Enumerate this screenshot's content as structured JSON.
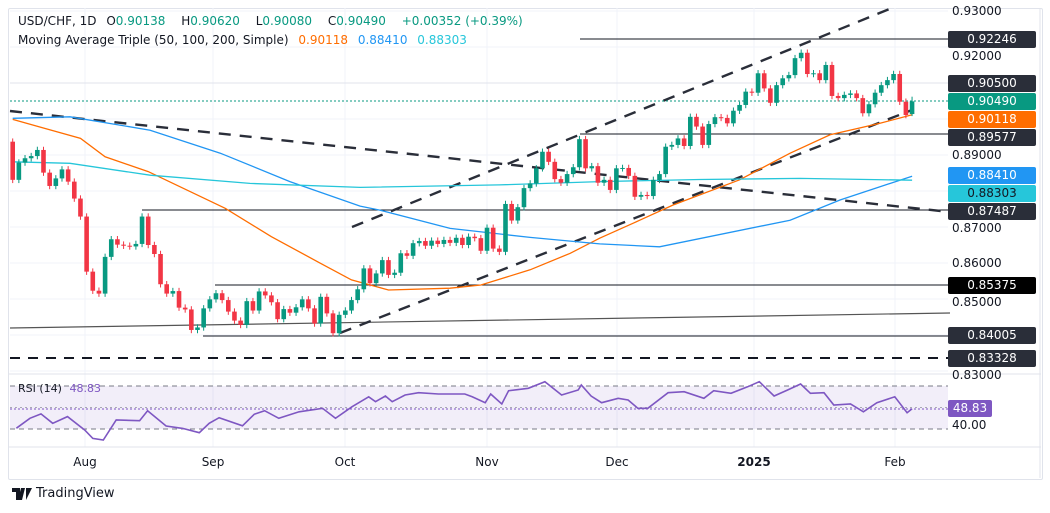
{
  "header": {
    "symbol": "USD/CHF, 1D",
    "open_label": "O",
    "open": "0.90138",
    "high_label": "H",
    "high": "0.90620",
    "low_label": "L",
    "low": "0.90080",
    "close_label": "C",
    "close": "0.90490",
    "change": "+0.00352 (+0.39%)",
    "indicator": "Moving Average Triple (50, 100, 200, Simple)",
    "ma50": "0.90118",
    "ma100": "0.88410",
    "ma200": "0.88303"
  },
  "rsi_header": {
    "label": "RSI (14)",
    "value": "48.83"
  },
  "badges": {
    "r1": "0.92246",
    "r2": "0.90500",
    "price": "0.90490",
    "ma50": "0.90118",
    "s1": "0.89577",
    "ma100": "0.88410",
    "ma200": "0.88303",
    "s2": "0.87487",
    "s3": "0.85375",
    "s4": "0.84005",
    "s5": "0.83328",
    "rsi": "48.83"
  },
  "axis": {
    "ticks": [
      "0.93000",
      "0.92000",
      "0.89000",
      "0.87000",
      "0.86000",
      "0.85000",
      "0.83000"
    ],
    "rsi_tick": "40.00",
    "months": [
      "Aug",
      "Sep",
      "Oct",
      "Nov",
      "Dec",
      "2025",
      "Feb"
    ]
  },
  "brand": "TradingView",
  "colors": {
    "up": "#089981",
    "down": "#f23645",
    "ma50": "#ff6d00",
    "ma100": "#2196f3",
    "ma200": "#26c6da",
    "rsi": "#7e57c2"
  },
  "chart_data": {
    "type": "candlestick",
    "symbol": "USD/CHF",
    "timeframe": "1D",
    "ylim": [
      0.83,
      0.93
    ],
    "first_open": 0.8937,
    "last_bar": {
      "open": 0.90138,
      "high": 0.9062,
      "low": 0.9008,
      "close": 0.9049
    },
    "closes": [
      0.8831,
      0.8879,
      0.8891,
      0.8897,
      0.8914,
      0.8851,
      0.8814,
      0.8835,
      0.886,
      0.8826,
      0.8779,
      0.8729,
      0.8576,
      0.8523,
      0.8515,
      0.8617,
      0.8666,
      0.8651,
      0.8648,
      0.8646,
      0.8653,
      0.8729,
      0.865,
      0.8625,
      0.8541,
      0.8515,
      0.8522,
      0.8476,
      0.8471,
      0.8414,
      0.8421,
      0.8474,
      0.8499,
      0.8516,
      0.8497,
      0.8465,
      0.844,
      0.8428,
      0.8494,
      0.8468,
      0.8521,
      0.851,
      0.8491,
      0.8444,
      0.8472,
      0.8462,
      0.8477,
      0.8499,
      0.8474,
      0.8432,
      0.8506,
      0.846,
      0.8405,
      0.8456,
      0.8468,
      0.8497,
      0.8527,
      0.8585,
      0.8544,
      0.8571,
      0.8608,
      0.8567,
      0.8573,
      0.8627,
      0.862,
      0.8655,
      0.8661,
      0.8648,
      0.8662,
      0.8653,
      0.8664,
      0.8656,
      0.867,
      0.865,
      0.8673,
      0.8669,
      0.8634,
      0.8698,
      0.864,
      0.8631,
      0.8764,
      0.8718,
      0.8755,
      0.8808,
      0.8821,
      0.8863,
      0.8909,
      0.8881,
      0.8833,
      0.8823,
      0.8847,
      0.8866,
      0.8944,
      0.8863,
      0.8869,
      0.8823,
      0.8831,
      0.8803,
      0.8863,
      0.8864,
      0.8842,
      0.8784,
      0.8789,
      0.8786,
      0.8831,
      0.8847,
      0.8923,
      0.8928,
      0.8946,
      0.8925,
      0.9006,
      0.8979,
      0.8928,
      0.8986,
      0.9005,
      0.9003,
      0.8988,
      0.9023,
      0.9039,
      0.9076,
      0.9073,
      0.9127,
      0.9085,
      0.9045,
      0.9094,
      0.9113,
      0.9122,
      0.9169,
      0.9184,
      0.9125,
      0.9127,
      0.9108,
      0.915,
      0.9064,
      0.9058,
      0.9067,
      0.9071,
      0.9058,
      0.9016,
      0.9041,
      0.9073,
      0.9094,
      0.9108,
      0.9125,
      0.9048,
      0.9011,
      0.9049
    ],
    "moving_averages": [
      {
        "name": "MA 50",
        "points": [
          [
            1,
            0.8999
          ],
          [
            12,
            0.8946
          ],
          [
            16,
            0.8895
          ],
          [
            23,
            0.8854
          ],
          [
            35.5,
            0.8752
          ],
          [
            43,
            0.8673
          ],
          [
            51,
            0.8599
          ],
          [
            56,
            0.8553
          ],
          [
            62,
            0.8525
          ],
          [
            72,
            0.853
          ],
          [
            77,
            0.8539
          ],
          [
            85,
            0.8581
          ],
          [
            91.5,
            0.8627
          ],
          [
            96.3,
            0.8669
          ],
          [
            102.8,
            0.8719
          ],
          [
            108.2,
            0.8761
          ],
          [
            119,
            0.8831
          ],
          [
            127.2,
            0.8905
          ],
          [
            133.7,
            0.8956
          ],
          [
            141.8,
            0.8988
          ],
          [
            147,
            0.9012
          ]
        ]
      },
      {
        "name": "MA 100",
        "points": [
          [
            1,
            0.9002
          ],
          [
            10.3,
            0.9006
          ],
          [
            23.3,
            0.8969
          ],
          [
            34.7,
            0.8905
          ],
          [
            46,
            0.8826
          ],
          [
            57.4,
            0.8758
          ],
          [
            60.6,
            0.8747
          ],
          [
            72,
            0.8696
          ],
          [
            85,
            0.8671
          ],
          [
            96.3,
            0.8653
          ],
          [
            106,
            0.8645
          ],
          [
            127.2,
            0.8719
          ],
          [
            135.3,
            0.8775
          ],
          [
            147,
            0.8841
          ]
        ]
      },
      {
        "name": "MA 200",
        "points": [
          [
            1,
            0.8881
          ],
          [
            10.3,
            0.8877
          ],
          [
            23.3,
            0.8844
          ],
          [
            39.5,
            0.8821
          ],
          [
            57.4,
            0.881
          ],
          [
            80,
            0.8817
          ],
          [
            96.3,
            0.8826
          ],
          [
            112.5,
            0.8832
          ],
          [
            128.8,
            0.8835
          ],
          [
            147,
            0.883
          ]
        ]
      }
    ],
    "rsi": {
      "period": 14,
      "bands": [
        70,
        50,
        30
      ],
      "points": [
        [
          1.6,
          30.7
        ],
        [
          3.8,
          40
        ],
        [
          5.6,
          44
        ],
        [
          7.5,
          35.3
        ],
        [
          9.9,
          41.5
        ],
        [
          12.7,
          29
        ],
        [
          14,
          21.3
        ],
        [
          15.7,
          19.8
        ],
        [
          17.8,
          38.4
        ],
        [
          21.6,
          37.7
        ],
        [
          22.9,
          47
        ],
        [
          25.9,
          32.8
        ],
        [
          28.6,
          30.6
        ],
        [
          31.3,
          26.6
        ],
        [
          32.9,
          35.3
        ],
        [
          34.5,
          40.5
        ],
        [
          38.3,
          33
        ],
        [
          40.2,
          43.7
        ],
        [
          41.9,
          47
        ],
        [
          44.2,
          40
        ],
        [
          47.5,
          46
        ],
        [
          51.3,
          49.3
        ],
        [
          53.4,
          40
        ],
        [
          56.1,
          50.7
        ],
        [
          58.8,
          60
        ],
        [
          59.9,
          55.4
        ],
        [
          61.5,
          60.7
        ],
        [
          62.6,
          55.4
        ],
        [
          64.7,
          61.6
        ],
        [
          66.9,
          63.8
        ],
        [
          70.1,
          62.6
        ],
        [
          74.4,
          62.6
        ],
        [
          75.6,
          60
        ],
        [
          77.7,
          54.5
        ],
        [
          78.6,
          62.6
        ],
        [
          80.4,
          53.3
        ],
        [
          81.5,
          65.6
        ],
        [
          84.7,
          67.9
        ],
        [
          87.4,
          74
        ],
        [
          90.1,
          61.6
        ],
        [
          92.8,
          66.3
        ],
        [
          93.3,
          70.9
        ],
        [
          94.9,
          60.7
        ],
        [
          96.6,
          54.5
        ],
        [
          99.3,
          58.6
        ],
        [
          100.9,
          57
        ],
        [
          102.5,
          49.3
        ],
        [
          104.1,
          49.3
        ],
        [
          107.4,
          63.8
        ],
        [
          110,
          64.7
        ],
        [
          113.2,
          58.6
        ],
        [
          114.8,
          65.6
        ],
        [
          117.6,
          63.2
        ],
        [
          120.3,
          69.3
        ],
        [
          122.2,
          74
        ],
        [
          124.6,
          60.7
        ],
        [
          126.8,
          66.3
        ],
        [
          128.9,
          71.9
        ],
        [
          130.5,
          63.2
        ],
        [
          132.7,
          63.8
        ],
        [
          134.3,
          52.3
        ],
        [
          137,
          53.3
        ],
        [
          139.1,
          46
        ],
        [
          141.3,
          54.5
        ],
        [
          144.2,
          60
        ],
        [
          146.2,
          45.2
        ],
        [
          147,
          48.83
        ]
      ]
    }
  }
}
